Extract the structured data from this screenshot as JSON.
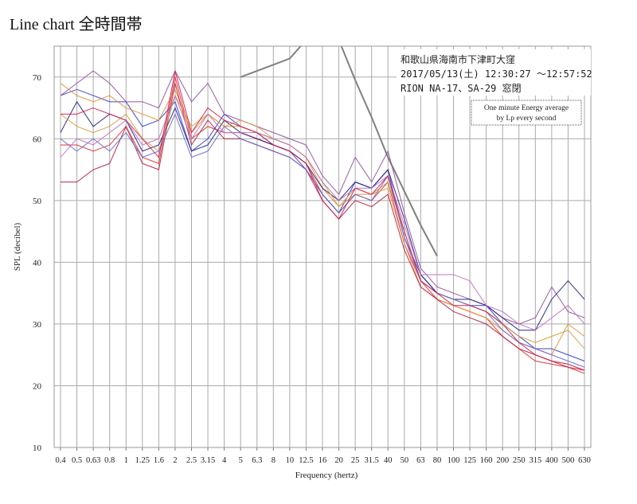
{
  "page_title": "Line chart 全時間帯",
  "chart_data": {
    "type": "line",
    "xlabel": "Frequency (hertz)",
    "ylabel": "SPL (decibel)",
    "ylim": [
      10,
      75
    ],
    "yticks": [
      10,
      20,
      30,
      40,
      50,
      60,
      70
    ],
    "grid": true,
    "annotation_lines": [
      "和歌山県海南市下津町大窪",
      "2017/05/13(土) 12:30:27 ～12:57:52",
      "RION NA-17、SA-29 窓閉"
    ],
    "note_lines": [
      "One minute Energy average",
      "by Lp every second"
    ],
    "categories": [
      "0.4",
      "0.5",
      "0.63",
      "0.8",
      "1",
      "1.25",
      "1.6",
      "2",
      "2.5",
      "3.15",
      "4",
      "5",
      "6.3",
      "8",
      "10",
      "12.5",
      "16",
      "20",
      "25",
      "31.5",
      "40",
      "50",
      "63",
      "80",
      "100",
      "125",
      "160",
      "200",
      "250",
      "315",
      "400",
      "500",
      "630"
    ],
    "reference_line": {
      "color": "#808080",
      "points": [
        [
          "5",
          70
        ],
        [
          "6.3",
          71
        ],
        [
          "8",
          72
        ],
        [
          "10",
          73
        ],
        [
          "12.5",
          76
        ],
        [
          "16",
          78
        ],
        [
          "20",
          76
        ],
        [
          "25",
          69.5
        ],
        [
          "31.5",
          63.5
        ],
        [
          "40",
          57
        ],
        [
          "50",
          51.5
        ],
        [
          "63",
          46
        ],
        [
          "80",
          41
        ]
      ]
    },
    "series": [
      {
        "color": "#e03030",
        "values": [
          59,
          59,
          58,
          59,
          62,
          57,
          56,
          70,
          60,
          62,
          61,
          61,
          60,
          59,
          58,
          56,
          51,
          48,
          51,
          50,
          53,
          43,
          37,
          34,
          33,
          32,
          31,
          28,
          26,
          24,
          23.5,
          23,
          22
        ]
      },
      {
        "color": "#3040d0",
        "values": [
          67,
          68,
          67,
          66,
          66,
          62,
          63,
          66,
          58,
          60,
          64,
          62,
          61,
          59,
          58,
          55,
          51,
          48,
          53,
          52,
          55,
          44,
          38,
          35,
          34,
          33,
          33,
          30,
          28,
          26,
          26,
          25,
          24
        ]
      },
      {
        "color": "#9050a0",
        "values": [
          67,
          69,
          71,
          69,
          66,
          66,
          65,
          71,
          66,
          69,
          64,
          63,
          62,
          61,
          60,
          59,
          54,
          51,
          57,
          53,
          58,
          48,
          39,
          36,
          35,
          34,
          33,
          31,
          30,
          31,
          36,
          32,
          31
        ]
      },
      {
        "color": "#e89030",
        "values": [
          69,
          67,
          66,
          67,
          65,
          64,
          63,
          68,
          61,
          64,
          62,
          62,
          61,
          60,
          59,
          57,
          52,
          49,
          51,
          51,
          52,
          43,
          36,
          34,
          33,
          32,
          31,
          29,
          27,
          26,
          25,
          30,
          28
        ]
      },
      {
        "color": "#202080",
        "values": [
          61,
          66,
          62,
          64,
          63,
          58,
          59,
          65,
          58,
          59,
          63,
          61,
          60,
          59,
          58,
          56,
          52,
          50,
          53,
          52,
          55,
          47,
          38,
          35,
          34,
          34,
          33,
          31,
          29,
          29,
          34,
          37,
          34
        ]
      },
      {
        "color": "#b02040",
        "values": [
          53,
          53,
          55,
          56,
          62,
          56,
          55,
          69,
          59,
          63,
          60,
          60,
          59,
          58,
          57,
          55,
          50,
          47,
          50,
          49,
          51,
          42,
          36,
          34,
          32,
          31,
          30,
          28,
          26,
          25,
          24,
          23.5,
          22.5
        ]
      },
      {
        "color": "#d0a040",
        "values": [
          64,
          62,
          61,
          62,
          64,
          60,
          58,
          67,
          62,
          64,
          62,
          63,
          62,
          60,
          59,
          57,
          53,
          49,
          52,
          51,
          53,
          45,
          37,
          35,
          34,
          33,
          32,
          30,
          28,
          27,
          28,
          29,
          26
        ]
      },
      {
        "color": "#6a6ad0",
        "values": [
          60,
          58,
          60,
          58,
          61,
          57,
          58,
          64,
          57,
          58,
          62,
          60,
          59,
          58,
          57,
          55,
          51,
          48,
          51,
          50,
          54,
          44,
          37,
          35,
          34,
          33,
          32,
          29,
          27,
          26,
          25,
          24,
          23
        ]
      },
      {
        "color": "#c070c0",
        "values": [
          57,
          60,
          59,
          61,
          63,
          59,
          60,
          67,
          60,
          64,
          61,
          61,
          61,
          60,
          59,
          57,
          53,
          50,
          52,
          52,
          54,
          46,
          38,
          38,
          38,
          37,
          33,
          32,
          30,
          29,
          31,
          33,
          30
        ]
      },
      {
        "color": "#d02050",
        "values": [
          64,
          64,
          65,
          64,
          63,
          60,
          57,
          71,
          61,
          65,
          63,
          62,
          61,
          59,
          58,
          56,
          50,
          47,
          52,
          51,
          54,
          45,
          37,
          35,
          33,
          33,
          32,
          30,
          27,
          25,
          24,
          23,
          22.5
        ]
      }
    ]
  }
}
